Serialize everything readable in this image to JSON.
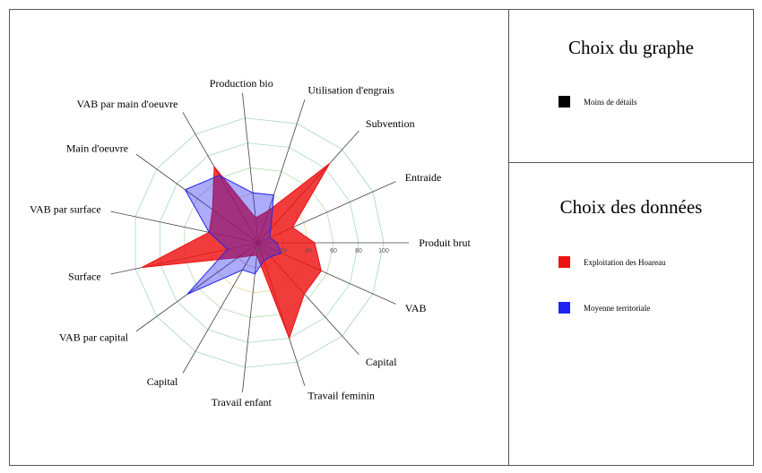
{
  "chart_data": {
    "type": "radar",
    "axes": [
      "Produit brut",
      "Entraide",
      "Subvention",
      "Utilisation d'engrais",
      "Production bio",
      "VAB par main d'oeuvre",
      "Main d'oeuvre",
      "VAB par surface",
      "Surface",
      "VAB par capital",
      "Capital",
      "Travail enfant",
      "Travail feminin",
      "Capital",
      "VAB"
    ],
    "rlim": [
      0,
      100
    ],
    "ticks": [
      0,
      20,
      40,
      60,
      80,
      100
    ],
    "series": [
      {
        "name": "Exploitation des Hoareau",
        "color": "#ee1111",
        "values": [
          45,
          30,
          85,
          27,
          20,
          70,
          45,
          40,
          95,
          20,
          12,
          10,
          80,
          55,
          55
        ]
      },
      {
        "name": "Moyenne territoriale",
        "color": "#2222ee",
        "values": [
          15,
          10,
          15,
          40,
          40,
          62,
          72,
          40,
          25,
          70,
          25,
          25,
          15,
          15,
          20
        ]
      }
    ]
  },
  "panels": {
    "graph": {
      "title": "Choix du graphe",
      "option": "Moins de détails",
      "option_color": "#000000"
    },
    "data": {
      "title": "Choix des données"
    }
  }
}
